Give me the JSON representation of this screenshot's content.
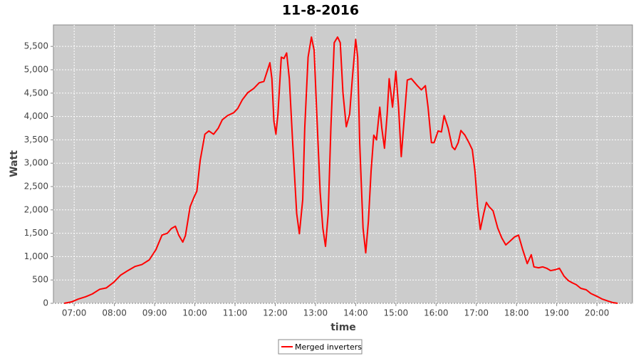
{
  "chart_data": {
    "type": "line",
    "title": "11-8-2016",
    "x_label": "time",
    "y_label": "Watt",
    "x": [
      "06:45",
      "06:56",
      "07:06",
      "07:17",
      "07:27",
      "07:38",
      "07:48",
      "07:59",
      "08:09",
      "08:20",
      "08:31",
      "08:41",
      "08:52",
      "09:02",
      "09:11",
      "09:19",
      "09:25",
      "09:31",
      "09:36",
      "09:42",
      "09:46",
      "09:53",
      "09:59",
      "10:03",
      "10:08",
      "10:15",
      "10:21",
      "10:28",
      "10:35",
      "10:41",
      "10:49",
      "10:58",
      "11:04",
      "11:11",
      "11:19",
      "11:28",
      "11:36",
      "11:43",
      "11:48",
      "11:52",
      "11:55",
      "11:58",
      "12:01",
      "12:04",
      "12:09",
      "12:13",
      "12:17",
      "12:21",
      "12:26",
      "12:32",
      "12:36",
      "12:41",
      "12:44",
      "12:49",
      "12:54",
      "12:58",
      "13:02",
      "13:07",
      "13:11",
      "13:15",
      "13:19",
      "13:23",
      "13:28",
      "13:33",
      "13:37",
      "13:41",
      "13:46",
      "13:51",
      "13:55",
      "14:00",
      "14:03",
      "14:06",
      "14:11",
      "14:15",
      "14:19",
      "14:23",
      "14:27",
      "14:31",
      "14:36",
      "14:39",
      "14:43",
      "14:47",
      "14:50",
      "14:55",
      "15:00",
      "15:04",
      "15:08",
      "15:13",
      "15:17",
      "15:23",
      "15:32",
      "15:38",
      "15:44",
      "15:48",
      "15:53",
      "15:57",
      "16:03",
      "16:08",
      "16:12",
      "16:18",
      "16:24",
      "16:28",
      "16:33",
      "16:37",
      "16:43",
      "16:49",
      "16:54",
      "16:58",
      "17:02",
      "17:06",
      "17:11",
      "17:15",
      "17:19",
      "17:25",
      "17:32",
      "17:38",
      "17:44",
      "17:51",
      "17:57",
      "18:03",
      "18:09",
      "18:16",
      "18:22",
      "18:26",
      "18:33",
      "18:39",
      "18:45",
      "18:51",
      "18:58",
      "19:04",
      "19:11",
      "19:17",
      "19:23",
      "19:29",
      "19:36",
      "19:44",
      "19:51",
      "20:00",
      "20:08",
      "20:16",
      "20:24",
      "20:31"
    ],
    "series": [
      {
        "name": "Merged inverters",
        "color": "#ff0000",
        "values": [
          0,
          30,
          90,
          140,
          200,
          300,
          330,
          450,
          600,
          700,
          790,
          830,
          930,
          1150,
          1460,
          1500,
          1600,
          1650,
          1460,
          1310,
          1450,
          2070,
          2280,
          2400,
          3060,
          3620,
          3690,
          3620,
          3750,
          3930,
          4020,
          4080,
          4170,
          4360,
          4510,
          4600,
          4720,
          4750,
          4970,
          5150,
          4810,
          3900,
          3620,
          4050,
          5270,
          5240,
          5360,
          4810,
          3440,
          1920,
          1490,
          2220,
          3750,
          5270,
          5700,
          5420,
          4050,
          2380,
          1610,
          1220,
          1920,
          3750,
          5580,
          5700,
          5580,
          4510,
          3780,
          4050,
          4810,
          5650,
          5270,
          3440,
          1610,
          1080,
          1760,
          2830,
          3600,
          3500,
          4200,
          3750,
          3320,
          4050,
          4810,
          4200,
          4970,
          4200,
          3140,
          4050,
          4780,
          4810,
          4660,
          4570,
          4660,
          4200,
          3440,
          3440,
          3690,
          3670,
          4020,
          3750,
          3350,
          3290,
          3440,
          3700,
          3600,
          3440,
          3290,
          2830,
          2070,
          1580,
          1920,
          2160,
          2070,
          1980,
          1610,
          1400,
          1250,
          1340,
          1420,
          1460,
          1160,
          850,
          1040,
          780,
          760,
          780,
          750,
          700,
          720,
          750,
          580,
          490,
          440,
          400,
          320,
          290,
          210,
          150,
          90,
          50,
          15,
          0
        ]
      }
    ],
    "xlim": [
      "06:29",
      "20:53"
    ],
    "xticks": [
      "07:00",
      "08:00",
      "09:00",
      "10:00",
      "11:00",
      "12:00",
      "13:00",
      "14:00",
      "15:00",
      "16:00",
      "17:00",
      "18:00",
      "19:00",
      "20:00"
    ],
    "ylim": [
      0,
      5960
    ],
    "yticks": [
      0,
      500,
      {
        "value": 1000,
        "label": "1,000"
      },
      {
        "value": 1500,
        "label": "1,500"
      },
      {
        "value": 2000,
        "label": "2,000"
      },
      {
        "value": 2500,
        "label": "2,500"
      },
      {
        "value": 3000,
        "label": "3,000"
      },
      {
        "value": 3500,
        "label": "3,500"
      },
      {
        "value": 4000,
        "label": "4,000"
      },
      {
        "value": 4500,
        "label": "4,500"
      },
      {
        "value": 5000,
        "label": "5,000"
      },
      {
        "value": 5500,
        "label": "5,500"
      }
    ],
    "grid": true,
    "legend": "bottom"
  }
}
